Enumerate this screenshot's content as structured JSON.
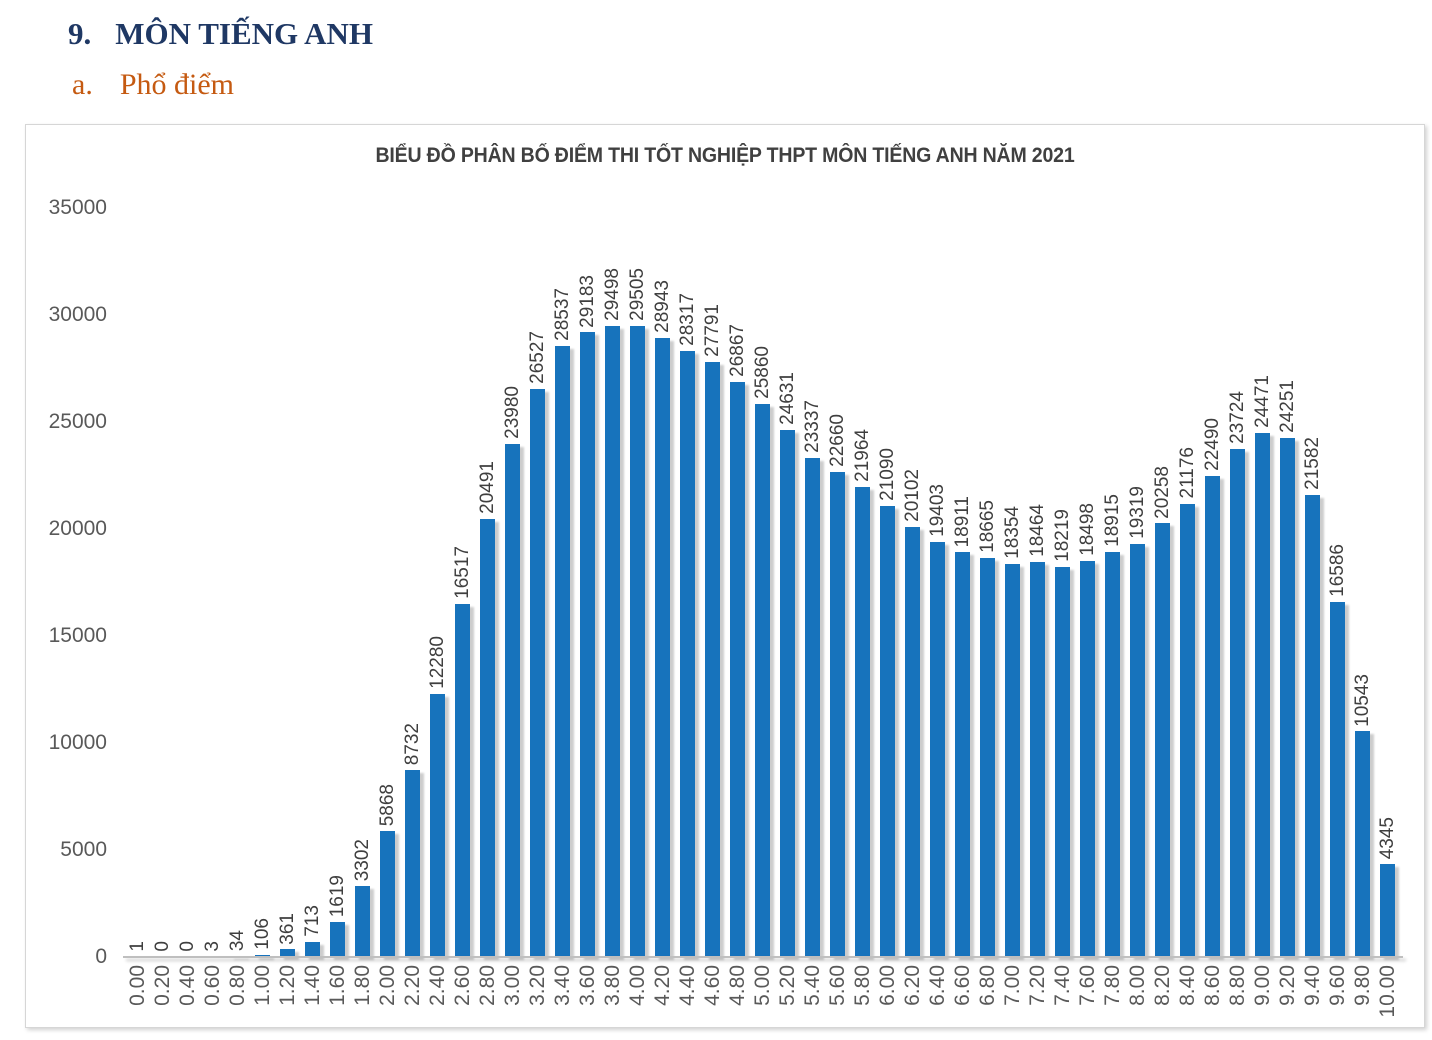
{
  "page": {
    "section_number": "9.",
    "section_title": "MÔN TIẾNG ANH",
    "subsection_letter": "a.",
    "subsection_title": "Phổ điểm"
  },
  "colors": {
    "bar": "#1773BC",
    "heading": "#1F3864",
    "subheading": "#C55A11",
    "axis_text": "#595959",
    "value_label_text": "#3F3F3F",
    "axis_line": "#BFBFBF"
  },
  "chart_data": {
    "type": "bar",
    "title": "BIỂU ĐỒ PHÂN BỐ ĐIỂM THI TỐT NGHIỆP THPT MÔN TIẾNG ANH NĂM 2021",
    "xlabel": "",
    "ylabel": "",
    "ylim": [
      0,
      35000
    ],
    "yticks": [
      0,
      5000,
      10000,
      15000,
      20000,
      25000,
      30000,
      35000
    ],
    "grid": false,
    "legend": "none",
    "bar_labels_rotation_deg": 90,
    "x_tick_rotation_deg": 90,
    "categories": [
      "0.00",
      "0.20",
      "0.40",
      "0.60",
      "0.80",
      "1.00",
      "1.20",
      "1.40",
      "1.60",
      "1.80",
      "2.00",
      "2.20",
      "2.40",
      "2.60",
      "2.80",
      "3.00",
      "3.20",
      "3.40",
      "3.60",
      "3.80",
      "4.00",
      "4.20",
      "4.40",
      "4.60",
      "4.80",
      "5.00",
      "5.20",
      "5.40",
      "5.60",
      "5.80",
      "6.00",
      "6.20",
      "6.40",
      "6.60",
      "6.80",
      "7.00",
      "7.20",
      "7.40",
      "7.60",
      "7.80",
      "8.00",
      "8.20",
      "8.40",
      "8.60",
      "8.80",
      "9.00",
      "9.20",
      "9.40",
      "9.60",
      "9.80",
      "10.00"
    ],
    "values": [
      1,
      0,
      0,
      3,
      34,
      106,
      361,
      713,
      1619,
      3302,
      5868,
      8732,
      12280,
      16517,
      20491,
      23980,
      26527,
      28537,
      29183,
      29498,
      29505,
      28943,
      28317,
      27791,
      26867,
      25860,
      24631,
      23337,
      22660,
      21964,
      21090,
      20102,
      19403,
      18911,
      18665,
      18354,
      18464,
      18219,
      18498,
      18915,
      19319,
      20258,
      21176,
      22490,
      23724,
      24471,
      24251,
      21582,
      16586,
      10543,
      4345
    ]
  }
}
